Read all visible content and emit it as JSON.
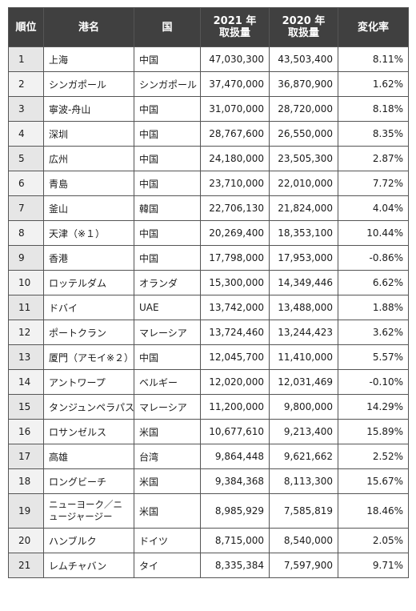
{
  "header": {
    "rank": "順位",
    "port": "港名",
    "country": "国",
    "y2021_line1": "2021 年",
    "y2021_line2": "取扱量",
    "y2020_line1": "2020 年",
    "y2020_line2": "取扱量",
    "change": "変化率"
  },
  "rows": [
    {
      "rank": "1",
      "port": "上海",
      "country": "中国",
      "v2021": "47,030,300",
      "v2020": "43,503,400",
      "change": "8.11%"
    },
    {
      "rank": "2",
      "port": "シンガポール",
      "country": "シンガポール",
      "v2021": "37,470,000",
      "v2020": "36,870,900",
      "change": "1.62%"
    },
    {
      "rank": "3",
      "port": "寧波-舟山",
      "country": "中国",
      "v2021": "31,070,000",
      "v2020": "28,720,000",
      "change": "8.18%"
    },
    {
      "rank": "4",
      "port": "深圳",
      "country": "中国",
      "v2021": "28,767,600",
      "v2020": "26,550,000",
      "change": "8.35%"
    },
    {
      "rank": "5",
      "port": "広州",
      "country": "中国",
      "v2021": "24,180,000",
      "v2020": "23,505,300",
      "change": "2.87%"
    },
    {
      "rank": "6",
      "port": "青島",
      "country": "中国",
      "v2021": "23,710,000",
      "v2020": "22,010,000",
      "change": "7.72%"
    },
    {
      "rank": "7",
      "port": "釜山",
      "country": "韓国",
      "v2021": "22,706,130",
      "v2020": "21,824,000",
      "change": "4.04%"
    },
    {
      "rank": "8",
      "port": "天津（※１）",
      "country": "中国",
      "v2021": "20,269,400",
      "v2020": "18,353,100",
      "change": "10.44%"
    },
    {
      "rank": "9",
      "port": "香港",
      "country": "中国",
      "v2021": "17,798,000",
      "v2020": "17,953,000",
      "change": "-0.86%"
    },
    {
      "rank": "10",
      "port": "ロッテルダム",
      "country": "オランダ",
      "v2021": "15,300,000",
      "v2020": "14,349,446",
      "change": "6.62%"
    },
    {
      "rank": "11",
      "port": "ドバイ",
      "country": "UAE",
      "v2021": "13,742,000",
      "v2020": "13,488,000",
      "change": "1.88%"
    },
    {
      "rank": "12",
      "port": "ポートクラン",
      "country": "マレーシア",
      "v2021": "13,724,460",
      "v2020": "13,244,423",
      "change": "3.62%"
    },
    {
      "rank": "13",
      "port": "厦門（アモイ※２）",
      "country": "中国",
      "v2021": "12,045,700",
      "v2020": "11,410,000",
      "change": "5.57%"
    },
    {
      "rank": "14",
      "port": "アントワープ",
      "country": "ベルギー",
      "v2021": "12,020,000",
      "v2020": "12,031,469",
      "change": "-0.10%"
    },
    {
      "rank": "15",
      "port": "タンジュンペラパス",
      "country": "マレーシア",
      "v2021": "11,200,000",
      "v2020": "9,800,000",
      "change": "14.29%"
    },
    {
      "rank": "16",
      "port": "ロサンゼルス",
      "country": "米国",
      "v2021": "10,677,610",
      "v2020": "9,213,400",
      "change": "15.89%"
    },
    {
      "rank": "17",
      "port": "高雄",
      "country": "台湾",
      "v2021": "9,864,448",
      "v2020": "9,621,662",
      "change": "2.52%"
    },
    {
      "rank": "18",
      "port": "ロングビーチ",
      "country": "米国",
      "v2021": "9,384,368",
      "v2020": "8,113,300",
      "change": "15.67%"
    },
    {
      "rank": "19",
      "port": "ニューヨーク／ニュージャージー",
      "country": "米国",
      "v2021": "8,985,929",
      "v2020": "7,585,819",
      "change": "18.46%"
    },
    {
      "rank": "20",
      "port": "ハンブルク",
      "country": "ドイツ",
      "v2021": "8,715,000",
      "v2020": "8,540,000",
      "change": "2.05%"
    },
    {
      "rank": "21",
      "port": "レムチャバン",
      "country": "タイ",
      "v2021": "8,335,384",
      "v2020": "7,597,900",
      "change": "9.71%"
    }
  ]
}
